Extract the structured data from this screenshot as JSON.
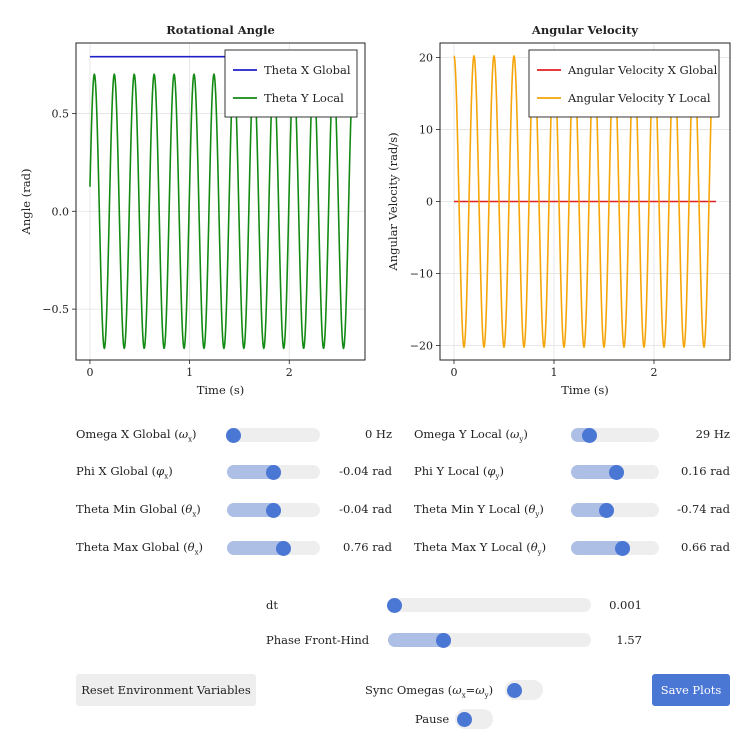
{
  "chart_data": [
    {
      "type": "line",
      "title": "Rotational Angle",
      "xlabel": "Time (s)",
      "ylabel": "Angle (rad)",
      "xlim": [
        -0.14,
        2.76
      ],
      "ylim": [
        -0.76,
        0.86
      ],
      "xticks": [
        0,
        1,
        2
      ],
      "yticks": [
        -0.5,
        0.0,
        0.5
      ],
      "ytick_labels": [
        "−0.5",
        "0.0",
        "0.5"
      ],
      "grid": true,
      "legend": "top-right",
      "series": [
        {
          "name": "Theta X Global",
          "color": "#1f1fcc",
          "x": [
            0,
            2.62
          ],
          "y": [
            0.79,
            0.79
          ]
        },
        {
          "name": "Theta Y Local",
          "color": "#138a13",
          "function": "sine",
          "amplitude": 0.7,
          "frequency_hz": 5.0,
          "phase": 0.18,
          "x_range": [
            0,
            2.62
          ]
        }
      ]
    },
    {
      "type": "line",
      "title": "Angular Velocity",
      "xlabel": "Time (s)",
      "ylabel": "Angular Velocity (rad/s)",
      "xlim": [
        -0.14,
        2.76
      ],
      "ylim": [
        -22,
        22
      ],
      "xticks": [
        0,
        1,
        2
      ],
      "yticks": [
        -20,
        -10,
        0,
        10,
        20
      ],
      "ytick_labels": [
        "−20",
        "−10",
        "0",
        "10",
        "20"
      ],
      "grid": true,
      "legend": "top-right",
      "series": [
        {
          "name": "Angular Velocity X Global",
          "color": "#e02020",
          "x": [
            0,
            2.62
          ],
          "y": [
            0,
            0
          ]
        },
        {
          "name": "Angular Velocity Y Local",
          "color": "#f5a50a",
          "function": "cosine",
          "amplitude": 20.2,
          "frequency_hz": 5.0,
          "phase": 0,
          "x_range": [
            0,
            2.62
          ]
        }
      ]
    }
  ],
  "controls": {
    "omega_x_global": {
      "label": "Omega X Global",
      "symbol": "ω",
      "sub": "x",
      "value_text": "0 Hz",
      "fraction": 0.0
    },
    "omega_y_local": {
      "label": "Omega Y Local",
      "symbol": "ω",
      "sub": "y",
      "value_text": "29 Hz",
      "fraction": 0.16
    },
    "phi_x_global": {
      "label": "Phi X Global",
      "symbol": "φ",
      "sub": "x",
      "value_text": "-0.04 rad",
      "fraction": 0.5
    },
    "phi_y_local": {
      "label": "Phi Y Local",
      "symbol": "φ",
      "sub": "y",
      "value_text": "0.16 rad",
      "fraction": 0.52
    },
    "theta_min_global": {
      "label": "Theta Min Global",
      "symbol": "θ",
      "sub": "x",
      "value_text": "-0.04 rad",
      "fraction": 0.5
    },
    "theta_min_y_local": {
      "label": "Theta Min Y Local",
      "symbol": "θ",
      "sub": "y",
      "value_text": "-0.74 rad",
      "fraction": 0.39
    },
    "theta_max_global": {
      "label": "Theta Max Global",
      "symbol": "θ",
      "sub": "x",
      "value_text": "0.76 rad",
      "fraction": 0.62
    },
    "theta_max_y_local": {
      "label": "Theta Max Y Local",
      "symbol": "θ",
      "sub": "y",
      "value_text": "0.66 rad",
      "fraction": 0.6
    },
    "dt": {
      "label": "dt",
      "value_text": "0.001",
      "fraction": 0.0
    },
    "phase_front_hind": {
      "label": "Phase Front-Hind",
      "value_text": "1.57",
      "fraction": 0.26
    }
  },
  "buttons": {
    "reset": "Reset Environment Variables",
    "save": "Save Plots"
  },
  "toggles": {
    "sync_omegas": {
      "label": "Sync Omegas",
      "symbol": "ω",
      "sub_left": "x",
      "sub_right": "y",
      "on": false
    },
    "pause": {
      "label": "Pause",
      "on": false
    }
  },
  "colors": {
    "accent": "#4a76d4",
    "track": "#eeeeee",
    "fill": "#aebfe6"
  }
}
